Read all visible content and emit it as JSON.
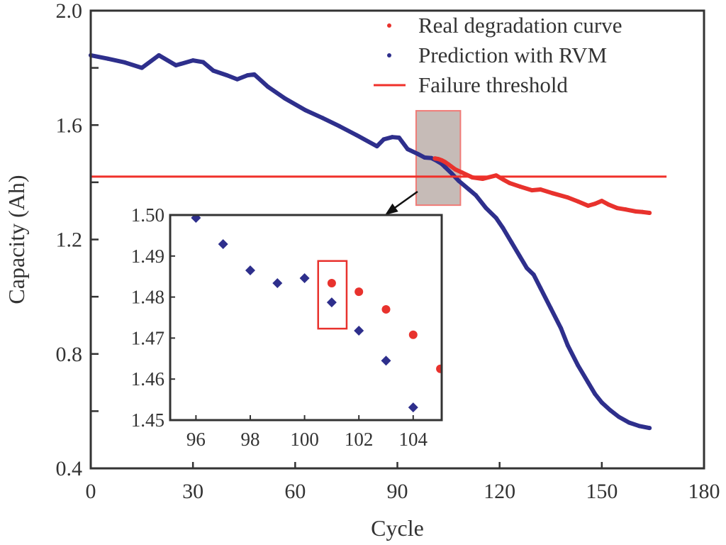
{
  "chart_data": {
    "type": "line",
    "title": "",
    "xlabel": "Cycle",
    "ylabel": "Capacity (Ah)",
    "xlim": [
      0,
      180
    ],
    "ylim": [
      0.4,
      2.0
    ],
    "xticks": [
      0,
      30,
      60,
      90,
      120,
      150,
      180
    ],
    "xtick_labels": [
      "0",
      "30",
      "60",
      "90",
      "120",
      "150",
      "180"
    ],
    "yticks": [
      0.4,
      0.8,
      1.2,
      1.6,
      2.0
    ],
    "ytick_labels": [
      "0.4",
      "0.8",
      "1.2",
      "1.6",
      "2.0"
    ],
    "yminor_ticks": [
      0.6,
      1.0,
      1.4,
      1.8
    ],
    "grid": false,
    "legend": {
      "position": "top-right",
      "entries": [
        {
          "label": "Real degradation curve",
          "marker": "dot",
          "color": "#e8322d"
        },
        {
          "label": "Prediction with RVM",
          "marker": "dot",
          "color": "#2e2f8c"
        },
        {
          "label": "Failure threshold",
          "marker": "line",
          "color": "#f0302a"
        }
      ]
    },
    "series": [
      {
        "name": "Prediction with RVM",
        "color": "#2e2f8c",
        "x": [
          0,
          5,
          10,
          15,
          20,
          25,
          30,
          33,
          36,
          40,
          43,
          46,
          48,
          52,
          57,
          63,
          68,
          73,
          78,
          84,
          86,
          88.5,
          90.5,
          93,
          96,
          98,
          100,
          101,
          102,
          103,
          104,
          106,
          108,
          111,
          113,
          116,
          119,
          121,
          123.5,
          126,
          128,
          130,
          132,
          135,
          138,
          140,
          143,
          146,
          148,
          150,
          152.5,
          155,
          158,
          161,
          164
        ],
        "y": [
          1.844,
          1.832,
          1.819,
          1.8,
          1.844,
          1.809,
          1.826,
          1.82,
          1.79,
          1.774,
          1.76,
          1.774,
          1.777,
          1.734,
          1.693,
          1.652,
          1.625,
          1.596,
          1.565,
          1.526,
          1.55,
          1.558,
          1.556,
          1.516,
          1.499,
          1.4865,
          1.4846,
          1.4787,
          1.4718,
          1.4645,
          1.4531,
          1.43,
          1.405,
          1.375,
          1.355,
          1.31,
          1.275,
          1.24,
          1.19,
          1.14,
          1.1,
          1.077,
          1.03,
          0.96,
          0.89,
          0.83,
          0.76,
          0.7,
          0.66,
          0.63,
          0.603,
          0.58,
          0.56,
          0.548,
          0.541
        ]
      },
      {
        "name": "Real degradation curve",
        "color": "#e8322d",
        "x": [
          101,
          102,
          103,
          104,
          105,
          107,
          109,
          112,
          115,
          117,
          119,
          121,
          123,
          126,
          129.5,
          132,
          135.5,
          140,
          143,
          146,
          148,
          150,
          152,
          154.5,
          157,
          160,
          162,
          164
        ],
        "y": [
          1.4834,
          1.4813,
          1.477,
          1.4708,
          1.4625,
          1.445,
          1.434,
          1.417,
          1.412,
          1.418,
          1.424,
          1.41,
          1.397,
          1.385,
          1.372,
          1.375,
          1.362,
          1.347,
          1.333,
          1.318,
          1.325,
          1.335,
          1.322,
          1.31,
          1.305,
          1.298,
          1.296,
          1.293
        ]
      },
      {
        "name": "Failure threshold",
        "color": "#f0302a",
        "x": [
          0,
          169
        ],
        "y": [
          1.42,
          1.42
        ]
      }
    ],
    "highlight_region": {
      "x_range": [
        95.5,
        108.5
      ],
      "y_range": [
        1.32,
        1.65
      ],
      "fill": "#c6bbb7",
      "border": "#f07b77"
    },
    "inset": {
      "xlim": [
        95.05,
        105.05
      ],
      "ylim": [
        1.45,
        1.5
      ],
      "xticks": [
        96,
        98,
        100,
        102,
        104
      ],
      "xtick_labels": [
        "96",
        "98",
        "100",
        "102",
        "104"
      ],
      "yticks": [
        1.45,
        1.46,
        1.47,
        1.48,
        1.49,
        1.5
      ],
      "ytick_labels": [
        "1.45",
        "1.46",
        "1.47",
        "1.48",
        "1.49",
        "1.50"
      ],
      "series": [
        {
          "name": "Prediction with RVM",
          "color": "#2e2f8c",
          "marker": "diamond",
          "x": [
            96,
            97,
            98,
            99,
            100,
            101,
            102,
            103,
            104
          ],
          "y": [
            1.4993,
            1.4929,
            1.4865,
            1.4834,
            1.4846,
            1.4787,
            1.4718,
            1.4645,
            1.4531
          ]
        },
        {
          "name": "Real degradation curve",
          "color": "#e8322d",
          "marker": "circle",
          "x": [
            101,
            102,
            103,
            104,
            105
          ],
          "y": [
            1.4834,
            1.4813,
            1.477,
            1.4708,
            1.4625
          ]
        }
      ],
      "highlight_box": {
        "x_range": [
          100.5,
          101.55
        ],
        "y_range": [
          1.4723,
          1.4888
        ],
        "color": "#e8322d"
      }
    }
  }
}
